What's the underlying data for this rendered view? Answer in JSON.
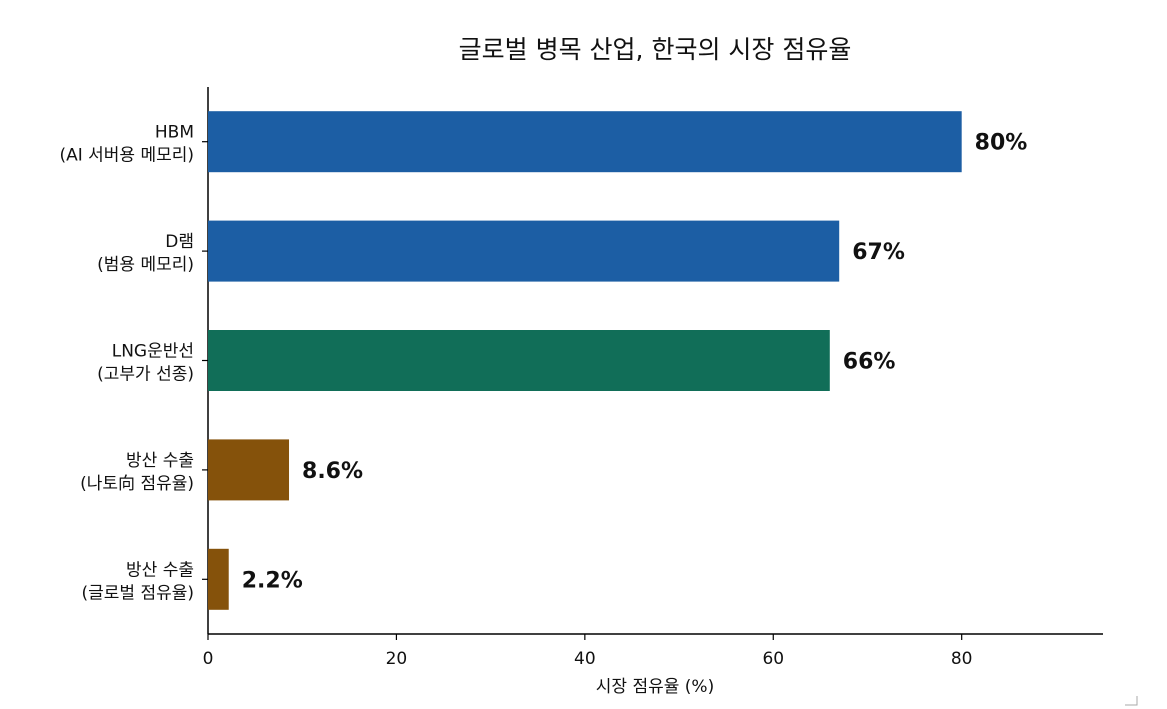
{
  "chart_data": {
    "type": "bar",
    "orientation": "horizontal",
    "title": "글로벌 병목 산업, 한국의 시장 점유율",
    "xlabel": "시장 점유율 (%)",
    "ylabel": "",
    "xlim": [
      0,
      95
    ],
    "xticks": [
      "0",
      "20",
      "40",
      "60",
      "80"
    ],
    "grid": false,
    "categories": [
      {
        "line1": "HBM",
        "line2": "(AI 서버용 메모리)"
      },
      {
        "line1": "D램",
        "line2": "(범용 메모리)"
      },
      {
        "line1": "LNG운반선",
        "line2": "(고부가 선종)"
      },
      {
        "line1": "방산 수출",
        "line2": "(나토向 점유율)"
      },
      {
        "line1": "방산 수출",
        "line2": "(글로벌 점유율)"
      }
    ],
    "values": [
      80,
      67,
      66,
      8.6,
      2.2
    ],
    "value_labels": [
      "80%",
      "67%",
      "66%",
      "8.6%",
      "2.2%"
    ],
    "colors": [
      "#1c5ea4",
      "#1c5ea4",
      "#116e58",
      "#85520b",
      "#85520b"
    ]
  }
}
